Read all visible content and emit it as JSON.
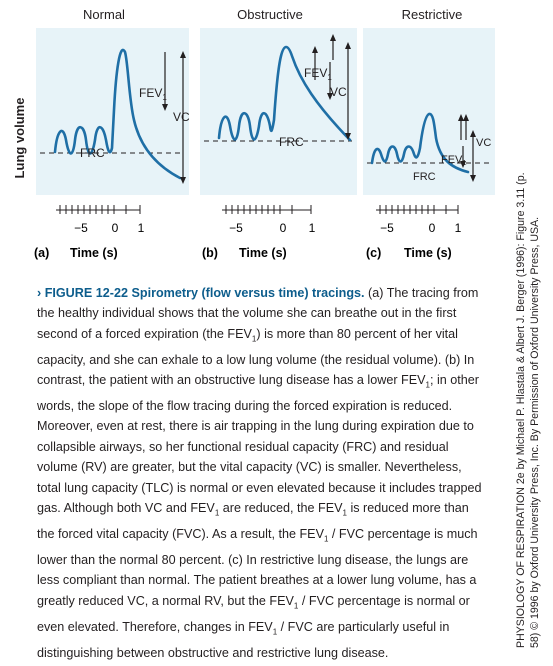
{
  "chart_data": [
    {
      "type": "line",
      "panel_label": "(a)",
      "title": "Normal",
      "xlabel": "Time (s)",
      "ylabel": "Lung volume",
      "x_ticks": [
        -5,
        0,
        1
      ],
      "x_tick_labels": [
        "−5",
        "0",
        "1"
      ],
      "annotations": [
        "FEV1",
        "VC",
        "FRC"
      ],
      "series": [
        {
          "values": []
        }
      ]
    },
    {
      "type": "line",
      "panel_label": "(b)",
      "title": "Obstructive",
      "xlabel": "Time (s)",
      "x_ticks": [
        -5,
        0,
        1
      ],
      "x_tick_labels": [
        "−5",
        "0",
        "1"
      ],
      "annotations": [
        "FEV1",
        "VC",
        "FRC"
      ],
      "series": [
        {
          "values": []
        }
      ]
    },
    {
      "type": "line",
      "panel_label": "(c)",
      "title": "Restrictive",
      "xlabel": "Time (s)",
      "x_ticks": [
        -5,
        0,
        1
      ],
      "x_tick_labels": [
        "−5",
        "0",
        "1"
      ],
      "annotations": [
        "FEV1",
        "VC",
        "FRC"
      ],
      "series": [
        {
          "values": []
        }
      ]
    }
  ],
  "figure": {
    "ylabel": "Lung volume",
    "panels": [
      {
        "title": "Normal",
        "label": "(a)",
        "xlabel": "Time (s)",
        "fev": "FEV",
        "fev_sub": "1",
        "vc": "VC",
        "frc": "FRC"
      },
      {
        "title": "Obstructive",
        "label": "(b)",
        "xlabel": "Time (s)",
        "fev": "FEV",
        "fev_sub": "1",
        "vc": "VC",
        "frc": "FRC"
      },
      {
        "title": "Restrictive",
        "label": "(c)",
        "xlabel": "Time (s)",
        "fev": "FEV",
        "fev_sub": "1",
        "vc": "VC",
        "frc": "FRC"
      }
    ],
    "ticks": [
      "−5",
      "0",
      "1"
    ]
  },
  "caption": {
    "label": "› FIGURE 12-22",
    "heading": "Spirometry (flow versus time) tracings.",
    "s1": "(a) The tracing from the healthy individual shows that the volume she can breathe out in the first second of a forced expiration (the FEV",
    "s2": ") is more than 80 percent of her vital capacity, and she can exhale to a low lung volume (the residual volume). (b) In contrast, the patient with an obstructive lung disease has a lower FEV",
    "s3": "; in other words, the slope of the flow tracing during the forced expiration is reduced. Moreover, even at rest, there is air trapping in the lung during expiration due to collapsible airways, so her functional residual capacity (FRC) and residual volume (RV) are greater, but the vital capacity (VC) is smaller. Nevertheless, total lung capacity (TLC) is normal or even elevated because it includes trapped gas. Although both VC and FEV",
    "s4": " are reduced, the FEV",
    "s5": " is reduced more than the forced vital capacity (FVC). As a result, the FEV",
    "s6": " / FVC percentage is much lower than the normal 80 percent. (c) In restrictive lung disease, the lungs are less compliant than normal. The patient breathes at a lower lung volume, has a greatly reduced VC, a normal RV, but the FEV",
    "s7": " / FVC percentage is normal or even elevated. Therefore, changes in FEV",
    "s8": " / FVC are particularly useful in distinguishing between obstructive and restrictive lung disease.",
    "sub": "1"
  },
  "credit": {
    "line1": "PHYSIOLOGY OF RESPIRATION 2e by Michael P. Hlastala & Albert J. Berger (1996): Figure 3.11 (p.",
    "line2": "58) © 1996 by Oxford University Press, Inc. By Permission of Oxford University Press, USA."
  }
}
